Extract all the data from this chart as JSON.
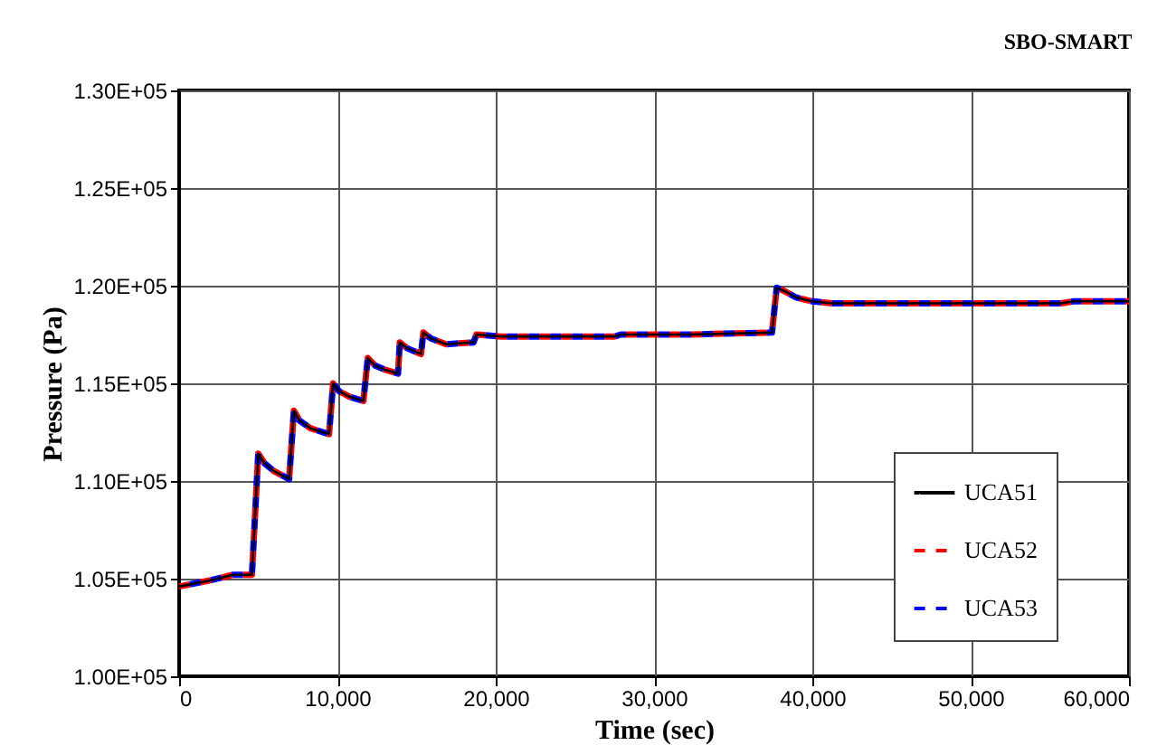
{
  "chart_data": {
    "type": "line",
    "title": "SBO-SMART",
    "xlabel": "Time (sec)",
    "ylabel": "Pressure (Pa)",
    "x": [
      0,
      1900,
      3400,
      4600,
      5000,
      5400,
      6000,
      6950,
      7250,
      7600,
      8300,
      9470,
      9730,
      10100,
      10800,
      11640,
      11920,
      12400,
      13000,
      13830,
      13940,
      14400,
      15280,
      15430,
      15900,
      16880,
      18600,
      18780,
      20300,
      27500,
      27900,
      32100,
      37450,
      37750,
      38300,
      38970,
      40000,
      41260,
      55700,
      56500,
      60000
    ],
    "series": [
      {
        "name": "UCA51",
        "color": "#000000",
        "line_style": "solid",
        "values": [
          104600,
          104900,
          105200,
          105200,
          111400,
          110900,
          110500,
          110100,
          113600,
          113100,
          112700,
          112400,
          115000,
          114600,
          114300,
          114100,
          116300,
          115900,
          115700,
          115500,
          117100,
          116800,
          116500,
          117600,
          117300,
          117000,
          117100,
          117500,
          117400,
          117400,
          117500,
          117500,
          117600,
          119900,
          119700,
          119400,
          119200,
          119100,
          119100,
          119200,
          119200
        ]
      },
      {
        "name": "UCA52",
        "color": "#ff0000",
        "line_style": "dashed",
        "values": [
          104600,
          104900,
          105200,
          105200,
          111400,
          110900,
          110500,
          110100,
          113600,
          113100,
          112700,
          112400,
          115000,
          114600,
          114300,
          114100,
          116300,
          115900,
          115700,
          115500,
          117100,
          116800,
          116500,
          117600,
          117300,
          117000,
          117100,
          117500,
          117400,
          117400,
          117500,
          117500,
          117600,
          119900,
          119700,
          119400,
          119200,
          119100,
          119100,
          119200,
          119200
        ]
      },
      {
        "name": "UCA53",
        "color": "#0000ff",
        "line_style": "dashed",
        "values": [
          104600,
          104900,
          105200,
          105200,
          111400,
          110900,
          110500,
          110100,
          113600,
          113100,
          112700,
          112400,
          115000,
          114600,
          114300,
          114100,
          116300,
          115900,
          115700,
          115500,
          117100,
          116800,
          116500,
          117600,
          117300,
          117000,
          117100,
          117500,
          117400,
          117400,
          117500,
          117500,
          117600,
          119900,
          119700,
          119400,
          119200,
          119100,
          119100,
          119200,
          119200
        ]
      }
    ],
    "xlim": [
      0,
      60000
    ],
    "xticks": [
      0,
      {
        "value": 10000,
        "label": "10,000"
      },
      {
        "value": 20000,
        "label": "20,000"
      },
      {
        "value": 30000,
        "label": "30,000"
      },
      {
        "value": 40000,
        "label": "40,000"
      },
      {
        "value": 50000,
        "label": "50,000"
      },
      {
        "value": 60000,
        "label": "60,000"
      }
    ],
    "ylim": [
      100000,
      130000
    ],
    "yticks": [
      {
        "value": 100000,
        "label": "1.00E+05"
      },
      {
        "value": 105000,
        "label": "1.05E+05"
      },
      {
        "value": 110000,
        "label": "1.10E+05"
      },
      {
        "value": 115000,
        "label": "1.15E+05"
      },
      {
        "value": 120000,
        "label": "1.20E+05"
      },
      {
        "value": 125000,
        "label": "1.25E+05"
      },
      {
        "value": 130000,
        "label": "1.30E+05"
      }
    ],
    "grid": true,
    "legend": "right",
    "marker": "none"
  }
}
